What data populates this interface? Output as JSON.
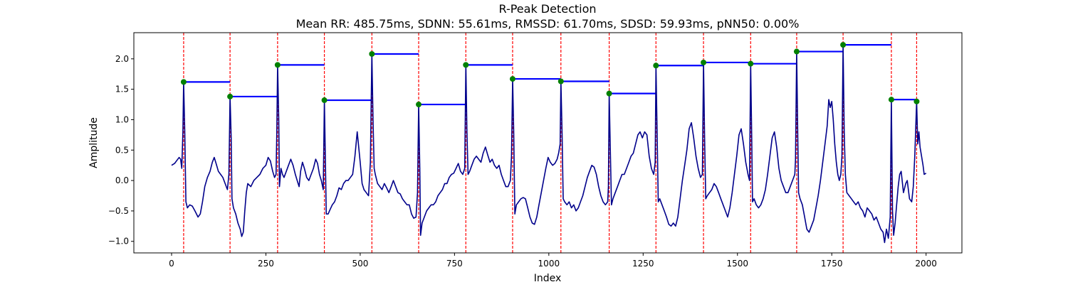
{
  "chart_data": {
    "type": "line",
    "title": "R-Peak Detection",
    "subtitle": "Mean RR: 485.75ms, SDNN: 55.61ms, RMSSD: 61.70ms, SDSD: 59.93ms, pNN50: 0.00%",
    "xlabel": "Index",
    "ylabel": "Amplitude",
    "xlim": [
      -100,
      2095
    ],
    "ylim": [
      -1.19,
      2.43
    ],
    "xticks": [
      0,
      250,
      500,
      750,
      1000,
      1250,
      1500,
      1750,
      2000
    ],
    "yticks": [
      -1.0,
      -0.5,
      0.0,
      0.5,
      1.0,
      1.5,
      2.0
    ],
    "grid": false,
    "colors": {
      "signal": "#00008b",
      "peak": "#008000",
      "vline": "#ff0000",
      "rr": "#0000ff"
    },
    "r_peaks": [
      {
        "x": 32,
        "y": 1.62
      },
      {
        "x": 155,
        "y": 1.38
      },
      {
        "x": 281,
        "y": 1.9
      },
      {
        "x": 405,
        "y": 1.32
      },
      {
        "x": 531,
        "y": 2.08
      },
      {
        "x": 655,
        "y": 1.25
      },
      {
        "x": 780,
        "y": 1.9
      },
      {
        "x": 904,
        "y": 1.67
      },
      {
        "x": 1032,
        "y": 1.63
      },
      {
        "x": 1160,
        "y": 1.43
      },
      {
        "x": 1284,
        "y": 1.89
      },
      {
        "x": 1410,
        "y": 1.94
      },
      {
        "x": 1535,
        "y": 1.92
      },
      {
        "x": 1657,
        "y": 2.12
      },
      {
        "x": 1780,
        "y": 2.23
      },
      {
        "x": 1908,
        "y": 1.33
      },
      {
        "x": 1975,
        "y": 1.3
      }
    ],
    "rr_segments": [
      {
        "x0": 32,
        "x1": 155,
        "y": 1.62
      },
      {
        "x0": 155,
        "x1": 281,
        "y": 1.38
      },
      {
        "x0": 281,
        "x1": 405,
        "y": 1.9
      },
      {
        "x0": 405,
        "x1": 531,
        "y": 1.32
      },
      {
        "x0": 531,
        "x1": 655,
        "y": 2.08
      },
      {
        "x0": 655,
        "x1": 780,
        "y": 1.25
      },
      {
        "x0": 780,
        "x1": 904,
        "y": 1.9
      },
      {
        "x0": 904,
        "x1": 1032,
        "y": 1.67
      },
      {
        "x0": 1032,
        "x1": 1160,
        "y": 1.63
      },
      {
        "x0": 1160,
        "x1": 1284,
        "y": 1.43
      },
      {
        "x0": 1284,
        "x1": 1410,
        "y": 1.89
      },
      {
        "x0": 1410,
        "x1": 1535,
        "y": 1.94
      },
      {
        "x0": 1535,
        "x1": 1657,
        "y": 1.92
      },
      {
        "x0": 1657,
        "x1": 1780,
        "y": 2.12
      },
      {
        "x0": 1780,
        "x1": 1908,
        "y": 2.23
      },
      {
        "x0": 1908,
        "x1": 1975,
        "y": 1.33
      }
    ],
    "signal": [
      [
        0,
        0.25
      ],
      [
        8,
        0.28
      ],
      [
        14,
        0.33
      ],
      [
        20,
        0.38
      ],
      [
        24,
        0.35
      ],
      [
        27,
        0.2
      ],
      [
        30,
        0.8
      ],
      [
        32,
        1.62
      ],
      [
        35,
        0.8
      ],
      [
        38,
        -0.35
      ],
      [
        42,
        -0.45
      ],
      [
        48,
        -0.4
      ],
      [
        55,
        -0.42
      ],
      [
        62,
        -0.5
      ],
      [
        70,
        -0.6
      ],
      [
        76,
        -0.55
      ],
      [
        82,
        -0.35
      ],
      [
        88,
        -0.1
      ],
      [
        95,
        0.05
      ],
      [
        102,
        0.15
      ],
      [
        108,
        0.3
      ],
      [
        113,
        0.38
      ],
      [
        118,
        0.28
      ],
      [
        124,
        0.15
      ],
      [
        130,
        0.1
      ],
      [
        136,
        0.05
      ],
      [
        142,
        -0.05
      ],
      [
        148,
        -0.15
      ],
      [
        152,
        0.1
      ],
      [
        155,
        1.38
      ],
      [
        158,
        0.7
      ],
      [
        160,
        -0.3
      ],
      [
        164,
        -0.45
      ],
      [
        170,
        -0.55
      ],
      [
        176,
        -0.7
      ],
      [
        182,
        -0.8
      ],
      [
        186,
        -0.92
      ],
      [
        190,
        -0.85
      ],
      [
        194,
        -0.5
      ],
      [
        198,
        -0.2
      ],
      [
        202,
        -0.05
      ],
      [
        210,
        -0.1
      ],
      [
        218,
        0.0
      ],
      [
        226,
        0.05
      ],
      [
        234,
        0.1
      ],
      [
        242,
        0.2
      ],
      [
        250,
        0.25
      ],
      [
        256,
        0.38
      ],
      [
        262,
        0.32
      ],
      [
        268,
        0.15
      ],
      [
        273,
        0.05
      ],
      [
        277,
        0.1
      ],
      [
        279,
        0.8
      ],
      [
        281,
        1.9
      ],
      [
        284,
        1.0
      ],
      [
        286,
        -0.1
      ],
      [
        290,
        0.2
      ],
      [
        294,
        0.1
      ],
      [
        298,
        0.05
      ],
      [
        304,
        0.15
      ],
      [
        310,
        0.25
      ],
      [
        316,
        0.35
      ],
      [
        322,
        0.25
      ],
      [
        328,
        0.1
      ],
      [
        333,
        0.0
      ],
      [
        338,
        -0.1
      ],
      [
        342,
        0.15
      ],
      [
        347,
        0.3
      ],
      [
        352,
        0.2
      ],
      [
        358,
        0.05
      ],
      [
        364,
        0.0
      ],
      [
        370,
        0.1
      ],
      [
        376,
        0.2
      ],
      [
        382,
        0.35
      ],
      [
        387,
        0.28
      ],
      [
        392,
        0.1
      ],
      [
        397,
        0.0
      ],
      [
        402,
        -0.15
      ],
      [
        405,
        1.32
      ],
      [
        408,
        0.2
      ],
      [
        410,
        -0.55
      ],
      [
        415,
        -0.55
      ],
      [
        420,
        -0.48
      ],
      [
        426,
        -0.4
      ],
      [
        432,
        -0.35
      ],
      [
        438,
        -0.25
      ],
      [
        444,
        -0.12
      ],
      [
        450,
        -0.15
      ],
      [
        456,
        -0.05
      ],
      [
        462,
        0.0
      ],
      [
        468,
        0.0
      ],
      [
        474,
        0.05
      ],
      [
        480,
        0.1
      ],
      [
        486,
        0.4
      ],
      [
        492,
        0.8
      ],
      [
        496,
        0.55
      ],
      [
        500,
        0.3
      ],
      [
        505,
        -0.05
      ],
      [
        510,
        -0.15
      ],
      [
        516,
        -0.2
      ],
      [
        522,
        -0.25
      ],
      [
        527,
        0.3
      ],
      [
        531,
        2.08
      ],
      [
        534,
        1.0
      ],
      [
        537,
        0.2
      ],
      [
        540,
        0.1
      ],
      [
        546,
        -0.05
      ],
      [
        552,
        -0.1
      ],
      [
        558,
        -0.15
      ],
      [
        564,
        -0.05
      ],
      [
        570,
        -0.12
      ],
      [
        576,
        -0.2
      ],
      [
        582,
        -0.1
      ],
      [
        588,
        0.0
      ],
      [
        594,
        -0.1
      ],
      [
        600,
        -0.2
      ],
      [
        606,
        -0.22
      ],
      [
        612,
        -0.3
      ],
      [
        618,
        -0.35
      ],
      [
        624,
        -0.4
      ],
      [
        630,
        -0.4
      ],
      [
        636,
        -0.55
      ],
      [
        642,
        -0.62
      ],
      [
        648,
        -0.6
      ],
      [
        652,
        -0.2
      ],
      [
        655,
        1.25
      ],
      [
        658,
        0.2
      ],
      [
        660,
        -0.9
      ],
      [
        664,
        -0.7
      ],
      [
        670,
        -0.6
      ],
      [
        676,
        -0.5
      ],
      [
        682,
        -0.45
      ],
      [
        688,
        -0.4
      ],
      [
        694,
        -0.4
      ],
      [
        700,
        -0.35
      ],
      [
        706,
        -0.25
      ],
      [
        712,
        -0.2
      ],
      [
        718,
        -0.15
      ],
      [
        724,
        -0.05
      ],
      [
        730,
        -0.05
      ],
      [
        736,
        0.05
      ],
      [
        742,
        0.1
      ],
      [
        748,
        0.12
      ],
      [
        754,
        0.2
      ],
      [
        760,
        0.28
      ],
      [
        766,
        0.15
      ],
      [
        772,
        0.1
      ],
      [
        777,
        0.2
      ],
      [
        780,
        1.9
      ],
      [
        783,
        0.8
      ],
      [
        786,
        0.1
      ],
      [
        790,
        0.15
      ],
      [
        796,
        0.25
      ],
      [
        802,
        0.35
      ],
      [
        808,
        0.4
      ],
      [
        814,
        0.35
      ],
      [
        820,
        0.3
      ],
      [
        826,
        0.45
      ],
      [
        832,
        0.55
      ],
      [
        838,
        0.42
      ],
      [
        844,
        0.3
      ],
      [
        850,
        0.35
      ],
      [
        856,
        0.25
      ],
      [
        862,
        0.2
      ],
      [
        868,
        0.25
      ],
      [
        874,
        0.1
      ],
      [
        880,
        0.0
      ],
      [
        886,
        -0.1
      ],
      [
        892,
        -0.1
      ],
      [
        898,
        0.0
      ],
      [
        901,
        0.4
      ],
      [
        904,
        1.67
      ],
      [
        907,
        0.8
      ],
      [
        910,
        -0.55
      ],
      [
        914,
        -0.4
      ],
      [
        920,
        -0.35
      ],
      [
        926,
        -0.3
      ],
      [
        932,
        -0.28
      ],
      [
        938,
        -0.3
      ],
      [
        944,
        -0.45
      ],
      [
        950,
        -0.6
      ],
      [
        956,
        -0.7
      ],
      [
        962,
        -0.72
      ],
      [
        968,
        -0.6
      ],
      [
        974,
        -0.4
      ],
      [
        980,
        -0.2
      ],
      [
        986,
        0.0
      ],
      [
        992,
        0.2
      ],
      [
        998,
        0.38
      ],
      [
        1004,
        0.3
      ],
      [
        1010,
        0.25
      ],
      [
        1016,
        0.28
      ],
      [
        1022,
        0.35
      ],
      [
        1026,
        0.45
      ],
      [
        1030,
        0.6
      ],
      [
        1032,
        1.63
      ],
      [
        1035,
        0.8
      ],
      [
        1038,
        -0.3
      ],
      [
        1042,
        -0.35
      ],
      [
        1048,
        -0.4
      ],
      [
        1054,
        -0.35
      ],
      [
        1060,
        -0.45
      ],
      [
        1066,
        -0.4
      ],
      [
        1072,
        -0.5
      ],
      [
        1078,
        -0.45
      ],
      [
        1084,
        -0.35
      ],
      [
        1090,
        -0.25
      ],
      [
        1096,
        -0.1
      ],
      [
        1102,
        0.05
      ],
      [
        1108,
        0.15
      ],
      [
        1114,
        0.25
      ],
      [
        1120,
        0.22
      ],
      [
        1126,
        0.1
      ],
      [
        1132,
        -0.1
      ],
      [
        1138,
        -0.25
      ],
      [
        1144,
        -0.35
      ],
      [
        1150,
        -0.4
      ],
      [
        1156,
        -0.35
      ],
      [
        1158,
        -0.1
      ],
      [
        1160,
        1.43
      ],
      [
        1163,
        0.5
      ],
      [
        1166,
        -0.4
      ],
      [
        1170,
        -0.3
      ],
      [
        1176,
        -0.2
      ],
      [
        1182,
        -0.1
      ],
      [
        1188,
        0.0
      ],
      [
        1194,
        0.1
      ],
      [
        1200,
        0.1
      ],
      [
        1206,
        0.2
      ],
      [
        1212,
        0.3
      ],
      [
        1218,
        0.4
      ],
      [
        1224,
        0.45
      ],
      [
        1230,
        0.6
      ],
      [
        1236,
        0.75
      ],
      [
        1242,
        0.8
      ],
      [
        1248,
        0.7
      ],
      [
        1254,
        0.8
      ],
      [
        1260,
        0.75
      ],
      [
        1266,
        0.4
      ],
      [
        1272,
        0.2
      ],
      [
        1278,
        0.1
      ],
      [
        1282,
        0.3
      ],
      [
        1284,
        1.89
      ],
      [
        1287,
        0.8
      ],
      [
        1290,
        -0.35
      ],
      [
        1294,
        -0.3
      ],
      [
        1300,
        -0.4
      ],
      [
        1306,
        -0.5
      ],
      [
        1312,
        -0.6
      ],
      [
        1318,
        -0.72
      ],
      [
        1324,
        -0.75
      ],
      [
        1330,
        -0.7
      ],
      [
        1336,
        -0.75
      ],
      [
        1342,
        -0.6
      ],
      [
        1348,
        -0.3
      ],
      [
        1354,
        0.0
      ],
      [
        1360,
        0.25
      ],
      [
        1366,
        0.5
      ],
      [
        1372,
        0.85
      ],
      [
        1378,
        0.95
      ],
      [
        1384,
        0.7
      ],
      [
        1390,
        0.4
      ],
      [
        1396,
        0.2
      ],
      [
        1402,
        0.05
      ],
      [
        1407,
        0.1
      ],
      [
        1410,
        1.94
      ],
      [
        1413,
        0.7
      ],
      [
        1416,
        -0.3
      ],
      [
        1420,
        -0.25
      ],
      [
        1426,
        -0.2
      ],
      [
        1432,
        -0.15
      ],
      [
        1438,
        -0.05
      ],
      [
        1444,
        -0.1
      ],
      [
        1450,
        -0.2
      ],
      [
        1456,
        -0.3
      ],
      [
        1462,
        -0.4
      ],
      [
        1468,
        -0.5
      ],
      [
        1474,
        -0.6
      ],
      [
        1480,
        -0.45
      ],
      [
        1486,
        -0.2
      ],
      [
        1492,
        0.1
      ],
      [
        1498,
        0.4
      ],
      [
        1504,
        0.75
      ],
      [
        1510,
        0.85
      ],
      [
        1516,
        0.6
      ],
      [
        1522,
        0.3
      ],
      [
        1528,
        0.1
      ],
      [
        1532,
        0.0
      ],
      [
        1535,
        1.92
      ],
      [
        1538,
        0.6
      ],
      [
        1540,
        -0.35
      ],
      [
        1544,
        -0.3
      ],
      [
        1550,
        -0.4
      ],
      [
        1556,
        -0.45
      ],
      [
        1562,
        -0.4
      ],
      [
        1568,
        -0.3
      ],
      [
        1574,
        -0.15
      ],
      [
        1580,
        0.1
      ],
      [
        1586,
        0.4
      ],
      [
        1592,
        0.7
      ],
      [
        1598,
        0.8
      ],
      [
        1604,
        0.55
      ],
      [
        1610,
        0.2
      ],
      [
        1616,
        0.0
      ],
      [
        1622,
        -0.1
      ],
      [
        1628,
        -0.2
      ],
      [
        1634,
        -0.2
      ],
      [
        1640,
        -0.1
      ],
      [
        1646,
        0.0
      ],
      [
        1652,
        0.1
      ],
      [
        1654,
        0.35
      ],
      [
        1657,
        2.12
      ],
      [
        1660,
        0.7
      ],
      [
        1662,
        -0.2
      ],
      [
        1666,
        -0.3
      ],
      [
        1672,
        -0.4
      ],
      [
        1678,
        -0.6
      ],
      [
        1684,
        -0.8
      ],
      [
        1690,
        -0.85
      ],
      [
        1696,
        -0.75
      ],
      [
        1702,
        -0.65
      ],
      [
        1708,
        -0.45
      ],
      [
        1714,
        -0.25
      ],
      [
        1720,
        0.0
      ],
      [
        1726,
        0.3
      ],
      [
        1732,
        0.6
      ],
      [
        1738,
        0.9
      ],
      [
        1742,
        1.33
      ],
      [
        1746,
        1.2
      ],
      [
        1750,
        1.3
      ],
      [
        1754,
        1.0
      ],
      [
        1758,
        0.6
      ],
      [
        1762,
        0.3
      ],
      [
        1766,
        0.1
      ],
      [
        1770,
        0.0
      ],
      [
        1774,
        0.1
      ],
      [
        1777,
        0.4
      ],
      [
        1780,
        2.23
      ],
      [
        1783,
        0.8
      ],
      [
        1786,
        0.1
      ],
      [
        1790,
        -0.2
      ],
      [
        1796,
        -0.25
      ],
      [
        1802,
        -0.3
      ],
      [
        1808,
        -0.35
      ],
      [
        1814,
        -0.4
      ],
      [
        1820,
        -0.35
      ],
      [
        1826,
        -0.45
      ],
      [
        1832,
        -0.5
      ],
      [
        1838,
        -0.6
      ],
      [
        1844,
        -0.45
      ],
      [
        1850,
        -0.5
      ],
      [
        1856,
        -0.55
      ],
      [
        1862,
        -0.65
      ],
      [
        1868,
        -0.6
      ],
      [
        1874,
        -0.7
      ],
      [
        1880,
        -0.8
      ],
      [
        1886,
        -0.85
      ],
      [
        1890,
        -1.02
      ],
      [
        1895,
        -0.8
      ],
      [
        1900,
        -0.95
      ],
      [
        1905,
        -0.6
      ],
      [
        1908,
        1.33
      ],
      [
        1911,
        -0.5
      ],
      [
        1914,
        -0.9
      ],
      [
        1918,
        -0.7
      ],
      [
        1922,
        -0.4
      ],
      [
        1926,
        -0.1
      ],
      [
        1930,
        0.1
      ],
      [
        1934,
        0.15
      ],
      [
        1940,
        -0.2
      ],
      [
        1946,
        -0.05
      ],
      [
        1950,
        0.0
      ],
      [
        1956,
        -0.3
      ],
      [
        1962,
        -0.35
      ],
      [
        1966,
        -0.1
      ],
      [
        1970,
        0.4
      ],
      [
        1975,
        1.3
      ],
      [
        1978,
        0.6
      ],
      [
        1981,
        0.8
      ],
      [
        1984,
        0.55
      ],
      [
        1988,
        0.4
      ],
      [
        1992,
        0.25
      ],
      [
        1995,
        0.1
      ],
      [
        2000,
        0.12
      ]
    ]
  }
}
